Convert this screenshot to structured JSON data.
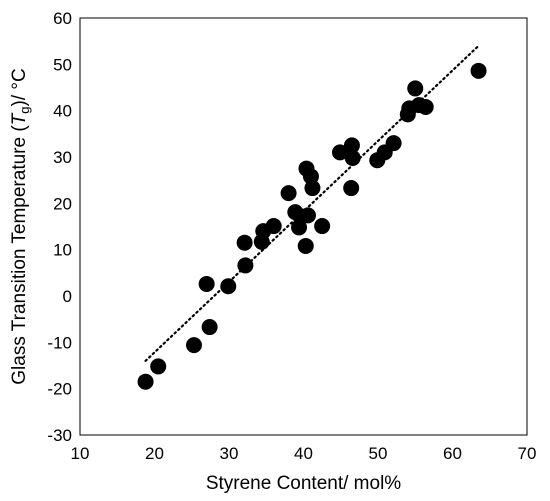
{
  "chart_data": {
    "type": "scatter",
    "xlabel": "Styrene Content/ mol%",
    "ylabel_parts": [
      "Glass Transition Temperature (",
      "T",
      "g",
      ")/ °C"
    ],
    "xlim": [
      10,
      70
    ],
    "ylim": [
      -30,
      60
    ],
    "x_ticks": [
      "10",
      "20",
      "30",
      "40",
      "50",
      "60",
      "70"
    ],
    "y_ticks": [
      "-30",
      "-20",
      "-10",
      "0",
      "10",
      "20",
      "30",
      "40",
      "50",
      "60"
    ],
    "grid": false,
    "legend": "none",
    "marker_color": "#000000",
    "trendline": {
      "style": "dotted",
      "x": [
        18.8,
        63.5
      ],
      "y": [
        -14,
        54
      ]
    },
    "points": [
      {
        "x": 18.8,
        "y": -18.5
      },
      {
        "x": 20.5,
        "y": -15.2
      },
      {
        "x": 25.3,
        "y": -10.6
      },
      {
        "x": 27.0,
        "y": 2.6
      },
      {
        "x": 27.4,
        "y": -6.7
      },
      {
        "x": 29.9,
        "y": 2.1
      },
      {
        "x": 32.1,
        "y": 11.5
      },
      {
        "x": 32.2,
        "y": 6.6
      },
      {
        "x": 34.4,
        "y": 11.7
      },
      {
        "x": 34.6,
        "y": 14.0
      },
      {
        "x": 36.0,
        "y": 15.1
      },
      {
        "x": 38.0,
        "y": 22.2
      },
      {
        "x": 38.9,
        "y": 18.1
      },
      {
        "x": 39.4,
        "y": 14.8
      },
      {
        "x": 39.6,
        "y": 17.2
      },
      {
        "x": 40.3,
        "y": 10.8
      },
      {
        "x": 40.4,
        "y": 27.5
      },
      {
        "x": 40.6,
        "y": 17.4
      },
      {
        "x": 41.0,
        "y": 25.8
      },
      {
        "x": 41.2,
        "y": 23.3
      },
      {
        "x": 42.5,
        "y": 15.1
      },
      {
        "x": 44.9,
        "y": 31.0
      },
      {
        "x": 46.4,
        "y": 23.3
      },
      {
        "x": 46.5,
        "y": 32.5
      },
      {
        "x": 46.6,
        "y": 29.8
      },
      {
        "x": 49.9,
        "y": 29.3
      },
      {
        "x": 50.9,
        "y": 31.0
      },
      {
        "x": 52.1,
        "y": 33.0
      },
      {
        "x": 54.0,
        "y": 39.2
      },
      {
        "x": 54.2,
        "y": 40.5
      },
      {
        "x": 55.0,
        "y": 44.8
      },
      {
        "x": 55.5,
        "y": 41.2
      },
      {
        "x": 56.4,
        "y": 40.8
      },
      {
        "x": 63.5,
        "y": 48.6
      }
    ]
  }
}
